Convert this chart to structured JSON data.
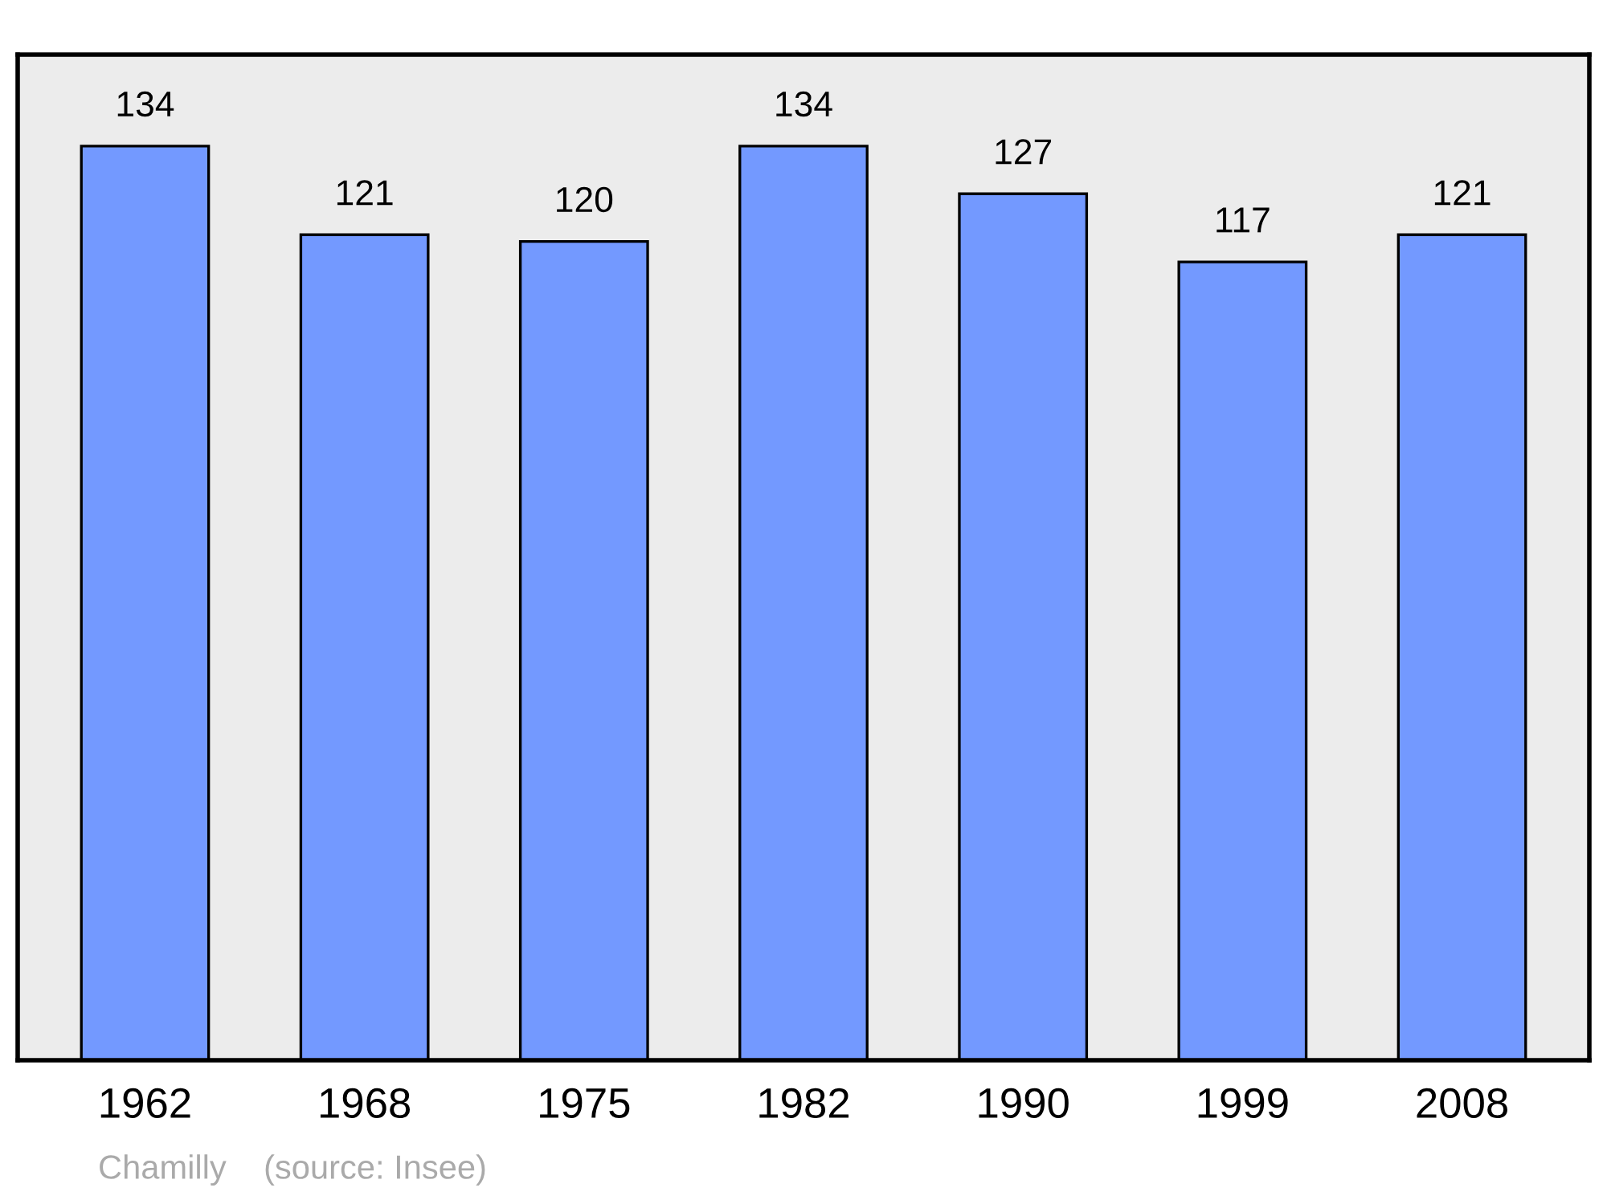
{
  "chart_data": {
    "type": "bar",
    "categories": [
      "1962",
      "1968",
      "1975",
      "1982",
      "1990",
      "1999",
      "2008"
    ],
    "values": [
      134,
      121,
      120,
      134,
      127,
      117,
      121
    ],
    "color": "#7399ff",
    "data_labels": true,
    "annotations": [
      "Chamilly    (source: Insee)"
    ]
  }
}
